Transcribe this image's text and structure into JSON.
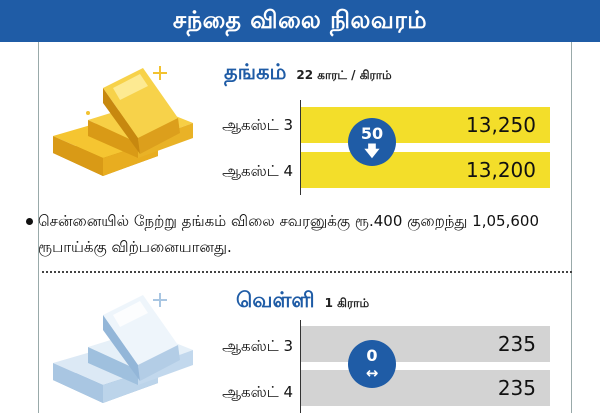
{
  "title": "சந்தை விலை நிலவரம்",
  "gold": {
    "name": "தங்கம்",
    "unit": "22 காரட் / கிராம்",
    "rows": [
      {
        "date": "ஆகஸ்ட் 3",
        "price": "13,250"
      },
      {
        "date": "ஆகஸ்ட் 4",
        "price": "13,200"
      }
    ],
    "change": "50",
    "change_direction": "down",
    "note": "சென்னையில் நேற்று தங்கம் விலை சவரனுக்கு ரூ.400 குறைந்து 1,05,600 ரூபாய்க்கு விற்பனையானது."
  },
  "silver": {
    "name": "வெள்ளி",
    "unit": "1 கிராம்",
    "rows": [
      {
        "date": "ஆகஸ்ட் 3",
        "price": "235"
      },
      {
        "date": "ஆகஸ்ட் 4",
        "price": "235"
      }
    ],
    "change": "0",
    "change_direction": "unchanged"
  },
  "colors": {
    "accent": "#1f5ca6",
    "gold_bar": "#f3de2a",
    "silver_bar": "#d3d3d3"
  }
}
